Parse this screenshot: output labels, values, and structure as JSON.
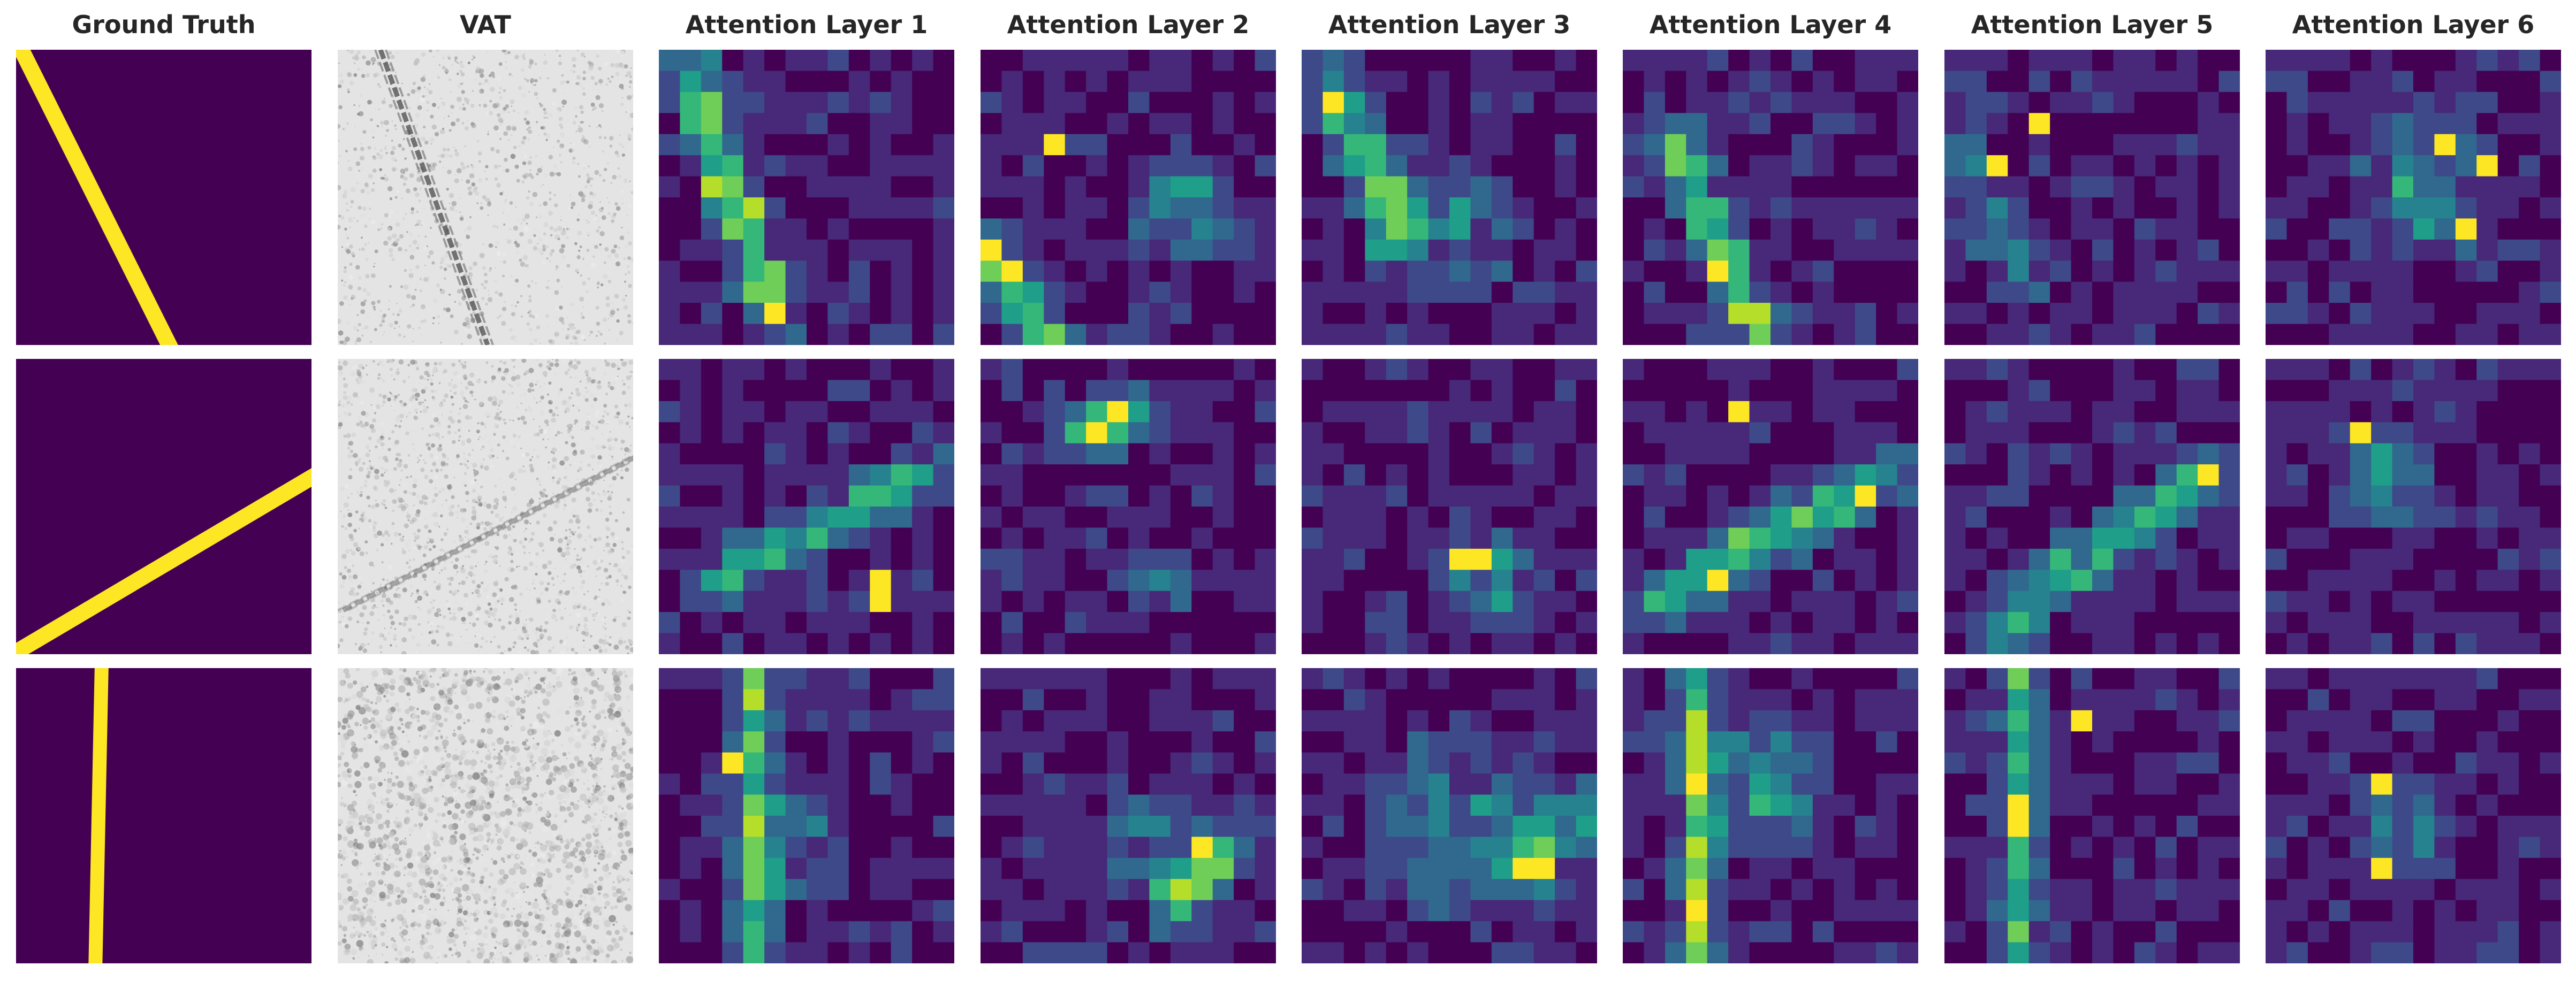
{
  "columns": [
    {
      "title": "Ground Truth"
    },
    {
      "title": "VAT"
    },
    {
      "title": "Attention Layer 1"
    },
    {
      "title": "Attention Layer 2"
    },
    {
      "title": "Attention Layer 3"
    },
    {
      "title": "Attention Layer 4"
    },
    {
      "title": "Attention Layer 5"
    },
    {
      "title": "Attention Layer 6"
    }
  ],
  "rows": 3,
  "grid_size": 14,
  "colormap": [
    "#440154",
    "#482878",
    "#3e4989",
    "#31688e",
    "#26828e",
    "#1f9e89",
    "#35b779",
    "#6ece58",
    "#b5de2b",
    "#fde725"
  ],
  "colors": {
    "mask_background": "#440154",
    "mask_line": "#fde725"
  },
  "ground_truth": [
    {
      "line": {
        "angle_deg": -60,
        "direction": "top-left to bottom-center"
      }
    },
    {
      "line": {
        "angle_deg": 30,
        "direction": "bottom-left to right-upper"
      }
    },
    {
      "line": {
        "angle_deg": 88,
        "direction": "near-vertical at left quarter"
      }
    }
  ],
  "vat": [
    {
      "image": "grayscale terrain relief with diagonal linear feature"
    },
    {
      "image": "grayscale terrain relief, faint diagonal feature"
    },
    {
      "image": "grayscale terrain relief, rough texture"
    }
  ]
}
